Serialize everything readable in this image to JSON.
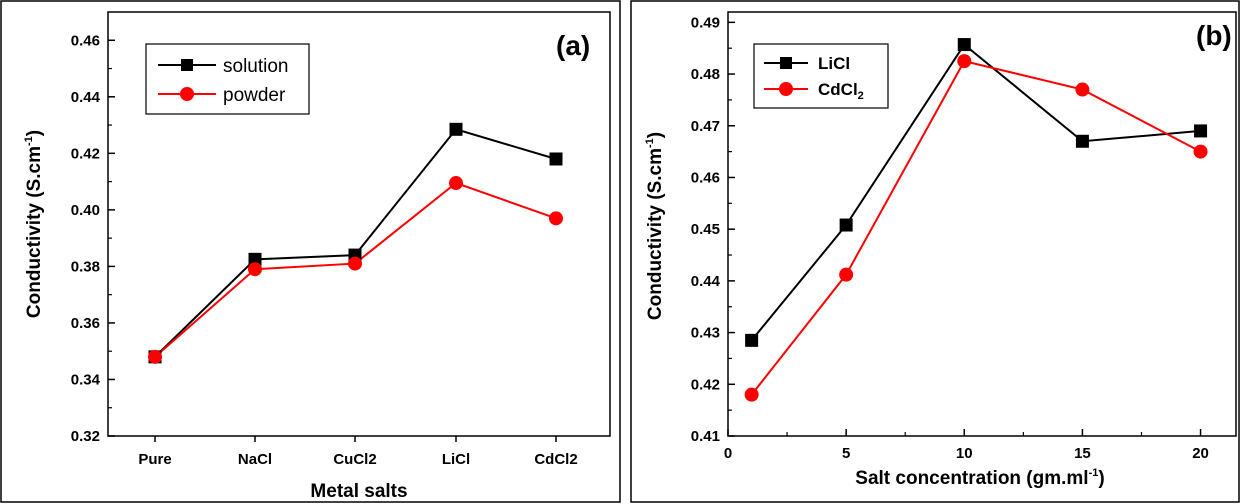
{
  "chart_data": [
    {
      "panel_label": "(a)",
      "type": "line",
      "xlabel": "Metal salts",
      "ylabel_main": "Conductivity (S.cm",
      "ylabel_sup": "-1",
      "ylabel_close": ")",
      "categories": [
        "Pure",
        "NaCl",
        "CuCl2",
        "LiCl",
        "CdCl2"
      ],
      "ylim": [
        0.32,
        0.47
      ],
      "yticks": [
        "0.32",
        "0.34",
        "0.36",
        "0.38",
        "0.40",
        "0.42",
        "0.44",
        "0.46"
      ],
      "ytick_values": [
        0.32,
        0.34,
        0.36,
        0.38,
        0.4,
        0.42,
        0.44,
        0.46
      ],
      "legend_position": "top-left",
      "grid": false,
      "series": [
        {
          "name": "solution",
          "color": "#000000",
          "marker": "square",
          "values": [
            0.348,
            0.3825,
            0.384,
            0.4285,
            0.418
          ]
        },
        {
          "name": "powder",
          "color": "#ff0000",
          "marker": "circle",
          "values": [
            0.348,
            0.379,
            0.381,
            0.4095,
            0.397
          ]
        }
      ]
    },
    {
      "panel_label": "(b)",
      "type": "line",
      "xlabel_main": "Salt concentration (gm.ml",
      "xlabel_sup": "-1",
      "xlabel_close": ")",
      "ylabel_main": "Conductivity (S.cm",
      "ylabel_sup": "-1",
      "ylabel_close": ")",
      "xlim": [
        0,
        21.5
      ],
      "xticks": [
        "0",
        "5",
        "10",
        "15",
        "20"
      ],
      "xtick_values": [
        0,
        5,
        10,
        15,
        20
      ],
      "ylim": [
        0.41,
        0.492
      ],
      "yticks": [
        "0.41",
        "0.42",
        "0.43",
        "0.44",
        "0.45",
        "0.46",
        "0.47",
        "0.48",
        "0.49"
      ],
      "ytick_values": [
        0.41,
        0.42,
        0.43,
        0.44,
        0.45,
        0.46,
        0.47,
        0.48,
        0.49
      ],
      "legend_position": "top-left",
      "grid": false,
      "series": [
        {
          "name": "LiCl",
          "color": "#000000",
          "marker": "square",
          "x": [
            1,
            5,
            10,
            15,
            20
          ],
          "values": [
            0.4285,
            0.4508,
            0.4857,
            0.467,
            0.469
          ]
        },
        {
          "name_main": "CdCl",
          "name_sub": "2",
          "color": "#ff0000",
          "marker": "circle",
          "x": [
            1,
            5,
            10,
            15,
            20
          ],
          "values": [
            0.418,
            0.4412,
            0.4825,
            0.477,
            0.465
          ]
        }
      ]
    }
  ]
}
